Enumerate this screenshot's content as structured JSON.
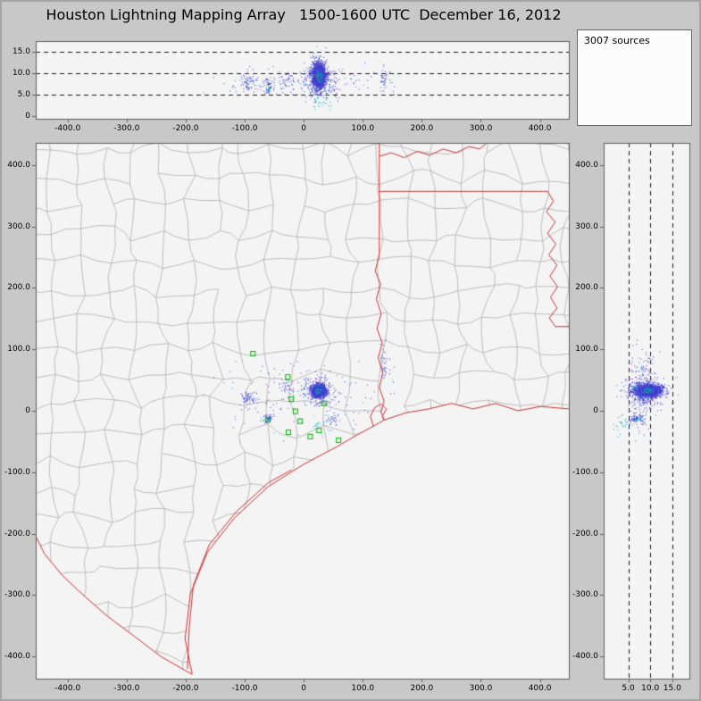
{
  "window": {
    "title": "Houston Lightning Mapping Array   1500-1600 UTC  December 16, 2012",
    "sources_label": "3007 sources"
  },
  "colors": {
    "window_bg": "#c8c8c8",
    "panel_bg": "#f4f4f4",
    "panel_border": "#5f5f5f",
    "county_line": "#b0b0b0",
    "state_line": "#cc3333",
    "grid_dash": "#1a1a1a",
    "station": "#00b400",
    "src_blue": "#3c3ccd",
    "src_violet": "#7a3fd1",
    "src_cyan": "#00b4c8",
    "src_green": "#00a41e"
  },
  "chart_data": {
    "type": "scatter",
    "description": "Lightning mapping array composite: altitude-vs-EW (top), plan view map (main), altitude-vs-NS (right)",
    "panels": [
      {
        "id": "ew_altitude",
        "type": "scatter",
        "xlim": [
          -454,
          449
        ],
        "ylim": [
          -0.6,
          17.4
        ],
        "xticks": [
          [
            -400,
            "-400.0"
          ],
          [
            -300,
            "-300.0"
          ],
          [
            -200,
            "-200.0"
          ],
          [
            -100,
            "-100.0"
          ],
          [
            0,
            "0"
          ],
          [
            100,
            "100.0"
          ],
          [
            200,
            "200.0"
          ],
          [
            300,
            "300.0"
          ],
          [
            400,
            "400.0"
          ]
        ],
        "yticks": [
          [
            0,
            "0"
          ],
          [
            5,
            "5.0"
          ],
          [
            10,
            "10.0"
          ],
          [
            15,
            "15.0"
          ]
        ],
        "hgrid_dashed": [
          5,
          10,
          15
        ]
      },
      {
        "id": "plan_view",
        "type": "scatter",
        "xlim": [
          -454,
          449
        ],
        "ylim": [
          -436,
          436
        ],
        "xticks": [
          [
            -400,
            "-400.0"
          ],
          [
            -300,
            "-300.0"
          ],
          [
            -200,
            "-200.0"
          ],
          [
            -100,
            "-100.0"
          ],
          [
            0,
            "0"
          ],
          [
            100,
            "100.0"
          ],
          [
            200,
            "200.0"
          ],
          [
            300,
            "300.0"
          ],
          [
            400,
            "400.0"
          ]
        ],
        "yticks": [
          [
            400,
            "400.0"
          ],
          [
            300,
            "300.0"
          ],
          [
            200,
            "200.0"
          ],
          [
            100,
            "100.0"
          ],
          [
            0,
            "0"
          ],
          [
            -100,
            "-100.0"
          ],
          [
            -200,
            "-200.0"
          ],
          [
            -300,
            "-300.0"
          ],
          [
            -400,
            "-400.0"
          ]
        ],
        "map": {
          "coast": [
            [
              -189,
              -429
            ],
            [
              -201,
              -371
            ],
            [
              -192,
              -298
            ],
            [
              -163,
              -230
            ],
            [
              -118,
              -175
            ],
            [
              -61,
              -124
            ],
            [
              0,
              -87
            ],
            [
              57,
              -58
            ],
            [
              91,
              -39
            ],
            [
              118,
              -25
            ],
            [
              136,
              -15
            ],
            [
              174,
              -3
            ],
            [
              212,
              3
            ],
            [
              250,
              12
            ],
            [
              287,
              3
            ],
            [
              325,
              12
            ],
            [
              363,
              0
            ],
            [
              401,
              7
            ],
            [
              449,
              3
            ]
          ],
          "rio_grande": [
            [
              -189,
              -429
            ],
            [
              -242,
              -400
            ],
            [
              -287,
              -367
            ],
            [
              -333,
              -334
            ],
            [
              -371,
              -302
            ],
            [
              -408,
              -269
            ],
            [
              -439,
              -233
            ],
            [
              -454,
              -204
            ]
          ],
          "barrier_islands": [
            [
              -197,
              -420
            ],
            [
              -194,
              -352
            ],
            [
              -187,
              -284
            ],
            [
              -160,
              -218
            ],
            [
              -114,
              -164
            ],
            [
              -60,
              -117
            ],
            [
              -20,
              -96
            ]
          ],
          "galveston_bay": [
            [
              118,
              -25
            ],
            [
              113,
              -9
            ],
            [
              120,
              5
            ],
            [
              131,
              11
            ],
            [
              140,
              3
            ],
            [
              133,
              -9
            ],
            [
              136,
              -15
            ]
          ],
          "state_borders": [
            [
              [
                128,
                436
              ],
              [
                128,
                252
              ]
            ],
            [
              [
                128,
                252
              ],
              [
                121,
                228
              ],
              [
                130,
                206
              ],
              [
                123,
                182
              ],
              [
                131,
                158
              ],
              [
                124,
                134
              ],
              [
                133,
                110
              ],
              [
                126,
                86
              ],
              [
                134,
                62
              ],
              [
                128,
                38
              ],
              [
                136,
                16
              ],
              [
                131,
                -2
              ],
              [
                136,
                -15
              ]
            ],
            [
              [
                128,
                414
              ],
              [
                148,
                420
              ],
              [
                170,
                412
              ],
              [
                192,
                422
              ],
              [
                214,
                416
              ],
              [
                236,
                426
              ],
              [
                258,
                420
              ],
              [
                280,
                430
              ],
              [
                298,
                426
              ],
              [
                310,
                436
              ]
            ],
            [
              [
                128,
                357
              ],
              [
                413,
                357
              ]
            ],
            [
              [
                413,
                357
              ],
              [
                423,
                341
              ],
              [
                411,
                324
              ],
              [
                426,
                307
              ],
              [
                413,
                289
              ],
              [
                427,
                271
              ],
              [
                415,
                254
              ],
              [
                429,
                237
              ],
              [
                417,
                219
              ],
              [
                430,
                202
              ],
              [
                418,
                185
              ],
              [
                429,
                167
              ],
              [
                416,
                151
              ],
              [
                426,
                137
              ]
            ],
            [
              [
                426,
                137
              ],
              [
                449,
                137
              ]
            ]
          ],
          "county_mesh": {
            "seed": 77,
            "x0": -470,
            "y0": -448,
            "dx": 46,
            "dy": 46,
            "nx": 22,
            "ny": 21,
            "jitter": 13,
            "skip": 0.07
          }
        },
        "stations": [
          [
            -86,
            93
          ],
          [
            -27,
            55
          ],
          [
            -21,
            19
          ],
          [
            -14,
            -1
          ],
          [
            -6,
            -17
          ],
          [
            -26,
            -35
          ],
          [
            11,
            -42
          ],
          [
            26,
            -32
          ],
          [
            59,
            -48
          ],
          [
            35,
            12
          ],
          [
            -61,
            -15
          ]
        ]
      },
      {
        "id": "ns_altitude",
        "type": "scatter",
        "xlim": [
          -0.6,
          18.9
        ],
        "ylim": [
          -436,
          436
        ],
        "xticks": [
          [
            5,
            "5.0"
          ],
          [
            10,
            "10.0"
          ],
          [
            15,
            "15.0"
          ]
        ],
        "yticks": [
          [
            400,
            "400.0"
          ],
          [
            300,
            "300.0"
          ],
          [
            200,
            "200.0"
          ],
          [
            100,
            "100.0"
          ],
          [
            0,
            "0"
          ],
          [
            -100,
            "-100.0"
          ],
          [
            -200,
            "-200.0"
          ],
          [
            -300,
            "-300.0"
          ],
          [
            -400,
            "-400.0"
          ]
        ],
        "vgrid_dashed": [
          5,
          10,
          15
        ]
      }
    ],
    "sources_3d": {
      "count": 3007,
      "seed": 20121216,
      "units": "km (x east-west, y north-south, z altitude)",
      "clusters": [
        {
          "n": 1800,
          "cx": 25,
          "cy": 33,
          "cz": 9.4,
          "sx": 5.5,
          "sy": 5,
          "sz": 1.5,
          "mode": "hot"
        },
        {
          "n": 300,
          "cx": 24,
          "cy": 34,
          "cz": 9.0,
          "sx": 13,
          "sy": 11,
          "sz": 2.2,
          "mode": "std"
        },
        {
          "n": 60,
          "cx": -95,
          "cy": 22,
          "cz": 8.0,
          "sx": 7,
          "sy": 5,
          "sz": 1.1,
          "mode": "std"
        },
        {
          "n": 45,
          "cx": -62,
          "cy": -12,
          "cz": 6.8,
          "sx": 4,
          "sy": 3.5,
          "sz": 1.0,
          "mode": "hot"
        },
        {
          "n": 35,
          "cx": -30,
          "cy": 38,
          "cz": 8.4,
          "sx": 9,
          "sy": 6,
          "sz": 1.2,
          "mode": "std"
        },
        {
          "n": 40,
          "cx": 136,
          "cy": 78,
          "cz": 8.6,
          "sx": 4,
          "sy": 16,
          "sz": 1.4,
          "mode": "std"
        },
        {
          "n": 30,
          "cx": 48,
          "cy": -14,
          "cz": 6.0,
          "sx": 7,
          "sy": 6,
          "sz": 1.6,
          "mode": "std"
        },
        {
          "n": 130,
          "cx": -5,
          "cy": 22,
          "cz": 7.8,
          "sx": 75,
          "sy": 30,
          "sz": 1.7,
          "mode": "std"
        },
        {
          "n": 22,
          "cx": 32,
          "cy": -22,
          "cz": 3.1,
          "sx": 10,
          "sy": 9,
          "sz": 1.1,
          "mode": "cyan"
        }
      ]
    }
  }
}
